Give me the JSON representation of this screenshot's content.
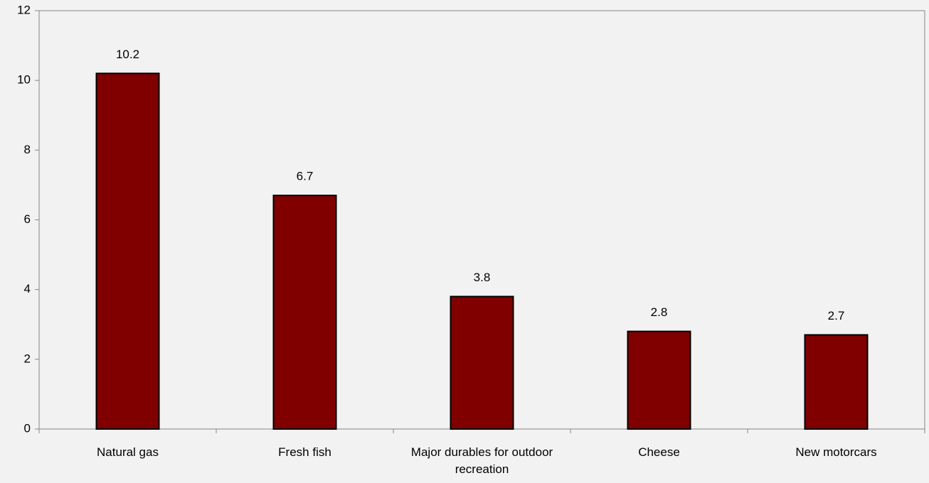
{
  "chart_data": {
    "type": "bar",
    "categories": [
      "Natural gas",
      "Fresh fish",
      "Major durables for outdoor recreation",
      "Cheese",
      "New motorcars"
    ],
    "values": [
      10.2,
      6.7,
      3.8,
      2.8,
      2.7
    ],
    "color": "#800000",
    "ylim": [
      0,
      12
    ],
    "yticks": [
      0,
      2,
      4,
      6,
      8,
      10,
      12
    ],
    "grid": false
  }
}
